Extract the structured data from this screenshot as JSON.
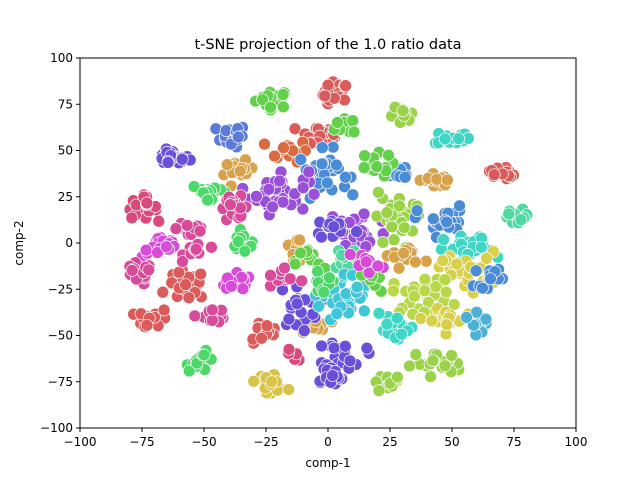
{
  "chart_data": {
    "type": "scatter",
    "title": "t-SNE projection of the 1.0 ratio data",
    "xlabel": "comp-1",
    "ylabel": "comp-2",
    "xlim": [
      -100,
      100
    ],
    "ylim": [
      -100,
      100
    ],
    "xticks": [
      "−100",
      "−75",
      "−50",
      "−25",
      "0",
      "25",
      "50",
      "75",
      "100"
    ],
    "yticks": [
      "−100",
      "−75",
      "−50",
      "−25",
      "0",
      "25",
      "50",
      "75",
      "100"
    ],
    "xtick_values": [
      -100,
      -75,
      -50,
      -25,
      0,
      25,
      50,
      75,
      100
    ],
    "ytick_values": [
      -100,
      -75,
      -50,
      -25,
      0,
      25,
      50,
      75,
      100
    ],
    "grid": false,
    "legend": false,
    "clusters": [
      {
        "color": "#62d04a",
        "center": [
          -22,
          78
        ],
        "spread": [
          3.5,
          2.5
        ],
        "n": 22
      },
      {
        "color": "#db5b5b",
        "center": [
          3,
          80
        ],
        "spread": [
          2.5,
          3.5
        ],
        "n": 22
      },
      {
        "color": "#5b7bdb",
        "center": [
          -39,
          58
        ],
        "spread": [
          3,
          3
        ],
        "n": 20
      },
      {
        "color": "#6a4fd8",
        "center": [
          -63,
          46
        ],
        "spread": [
          3.5,
          2
        ],
        "n": 22
      },
      {
        "color": "#9ad24a",
        "center": [
          30,
          68
        ],
        "spread": [
          2.5,
          2.5
        ],
        "n": 16
      },
      {
        "color": "#3fd6c5",
        "center": [
          50,
          57
        ],
        "spread": [
          3.5,
          2
        ],
        "n": 16
      },
      {
        "color": "#db5b5b",
        "center": [
          -3,
          58
        ],
        "spread": [
          4.5,
          3.5
        ],
        "n": 30
      },
      {
        "color": "#62d04a",
        "center": [
          9,
          64
        ],
        "spread": [
          3,
          3
        ],
        "n": 14
      },
      {
        "color": "#db6b3f",
        "center": [
          -16,
          50
        ],
        "spread": [
          4,
          3
        ],
        "n": 20
      },
      {
        "color": "#4a8cd8",
        "center": [
          -2,
          38
        ],
        "spread": [
          5,
          6
        ],
        "n": 34
      },
      {
        "color": "#9a4fd8",
        "center": [
          -20,
          28
        ],
        "spread": [
          6,
          6
        ],
        "n": 38
      },
      {
        "color": "#d8a24a",
        "center": [
          -36,
          38
        ],
        "spread": [
          3,
          3
        ],
        "n": 14
      },
      {
        "color": "#4fd86a",
        "center": [
          -47,
          28
        ],
        "spread": [
          4,
          2
        ],
        "n": 18
      },
      {
        "color": "#d84a9a",
        "center": [
          -38,
          19
        ],
        "spread": [
          3,
          3
        ],
        "n": 16
      },
      {
        "color": "#d84a7a",
        "center": [
          -75,
          19
        ],
        "spread": [
          3,
          3
        ],
        "n": 22
      },
      {
        "color": "#d84ad8",
        "center": [
          -67,
          -2
        ],
        "spread": [
          4,
          3
        ],
        "n": 22
      },
      {
        "color": "#d84a9a",
        "center": [
          -55,
          8
        ],
        "spread": [
          3,
          3
        ],
        "n": 16
      },
      {
        "color": "#4fd86a",
        "center": [
          -34,
          0
        ],
        "spread": [
          3,
          3
        ],
        "n": 14
      },
      {
        "color": "#d84a9a",
        "center": [
          -77,
          -17
        ],
        "spread": [
          3,
          3
        ],
        "n": 20
      },
      {
        "color": "#db5b5b",
        "center": [
          -57,
          -23
        ],
        "spread": [
          4,
          4
        ],
        "n": 28
      },
      {
        "color": "#d84ad8",
        "center": [
          -38,
          -22
        ],
        "spread": [
          4,
          2.5
        ],
        "n": 18
      },
      {
        "color": "#d84a9a",
        "center": [
          -53,
          -4
        ],
        "spread": [
          2.5,
          2.5
        ],
        "n": 10
      },
      {
        "color": "#db5b5b",
        "center": [
          -70,
          -41
        ],
        "spread": [
          3.5,
          2.5
        ],
        "n": 20
      },
      {
        "color": "#d84a9a",
        "center": [
          -47,
          -39
        ],
        "spread": [
          3,
          2
        ],
        "n": 14
      },
      {
        "color": "#4fd86a",
        "center": [
          -51,
          -64
        ],
        "spread": [
          3,
          2.5
        ],
        "n": 16
      },
      {
        "color": "#db5b5b",
        "center": [
          -26,
          -48
        ],
        "spread": [
          3,
          3
        ],
        "n": 14
      },
      {
        "color": "#d8c24a",
        "center": [
          -23,
          -75
        ],
        "spread": [
          3,
          2.5
        ],
        "n": 16
      },
      {
        "color": "#d84a7a",
        "center": [
          -14,
          -62
        ],
        "spread": [
          2,
          2
        ],
        "n": 5
      },
      {
        "color": "#d8a24a",
        "center": [
          -7,
          -45
        ],
        "spread": [
          3.5,
          3
        ],
        "n": 16
      },
      {
        "color": "#6a4fd8",
        "center": [
          -12,
          -34
        ],
        "spread": [
          4,
          6
        ],
        "n": 20
      },
      {
        "color": "#d8a24a",
        "center": [
          -13,
          -5
        ],
        "spread": [
          3,
          4
        ],
        "n": 14
      },
      {
        "color": "#62d04a",
        "center": [
          -7,
          -10
        ],
        "spread": [
          3,
          4
        ],
        "n": 12
      },
      {
        "color": "#9a4fd8",
        "center": [
          12,
          5
        ],
        "spread": [
          6,
          8
        ],
        "n": 34
      },
      {
        "color": "#6a4fd8",
        "center": [
          3,
          8
        ],
        "spread": [
          4,
          3
        ],
        "n": 16
      },
      {
        "color": "#4fd8a0",
        "center": [
          7,
          -8
        ],
        "spread": [
          3,
          4
        ],
        "n": 14
      },
      {
        "color": "#3fc6d8",
        "center": [
          7,
          -30
        ],
        "spread": [
          5,
          7
        ],
        "n": 36
      },
      {
        "color": "#6a4fd8",
        "center": [
          7,
          -60
        ],
        "spread": [
          4,
          4
        ],
        "n": 24
      },
      {
        "color": "#6a4fd8",
        "center": [
          0,
          -72
        ],
        "spread": [
          3,
          3
        ],
        "n": 16
      },
      {
        "color": "#4a8cd8",
        "center": [
          28,
          38
        ],
        "spread": [
          3,
          2.5
        ],
        "n": 14
      },
      {
        "color": "#62d04a",
        "center": [
          18,
          42
        ],
        "spread": [
          4,
          3
        ],
        "n": 14
      },
      {
        "color": "#9ad24a",
        "center": [
          27,
          12
        ],
        "spread": [
          4,
          8
        ],
        "n": 30
      },
      {
        "color": "#d8a24a",
        "center": [
          43,
          34
        ],
        "spread": [
          3,
          2
        ],
        "n": 16
      },
      {
        "color": "#db5b5b",
        "center": [
          70,
          38
        ],
        "spread": [
          2.5,
          2
        ],
        "n": 14
      },
      {
        "color": "#4a8cd8",
        "center": [
          46,
          12
        ],
        "spread": [
          5,
          4
        ],
        "n": 24
      },
      {
        "color": "#4fd8a0",
        "center": [
          76,
          14
        ],
        "spread": [
          3,
          2
        ],
        "n": 18
      },
      {
        "color": "#3fd6c5",
        "center": [
          57,
          -4
        ],
        "spread": [
          5,
          4
        ],
        "n": 24
      },
      {
        "color": "#d8d04a",
        "center": [
          55,
          -15
        ],
        "spread": [
          7,
          5
        ],
        "n": 34
      },
      {
        "color": "#d8a24a",
        "center": [
          31,
          -7
        ],
        "spread": [
          4,
          3
        ],
        "n": 14
      },
      {
        "color": "#b8d84a",
        "center": [
          38,
          -28
        ],
        "spread": [
          6,
          5
        ],
        "n": 30
      },
      {
        "color": "#d8d04a",
        "center": [
          47,
          -42
        ],
        "spread": [
          4,
          3
        ],
        "n": 20
      },
      {
        "color": "#4ab0d8",
        "center": [
          61,
          -40
        ],
        "spread": [
          3,
          4
        ],
        "n": 14
      },
      {
        "color": "#3fd6c5",
        "center": [
          27,
          -47
        ],
        "spread": [
          4,
          4
        ],
        "n": 16
      },
      {
        "color": "#9ad24a",
        "center": [
          44,
          -65
        ],
        "spread": [
          5,
          3
        ],
        "n": 20
      },
      {
        "color": "#9ad24a",
        "center": [
          26,
          -75
        ],
        "spread": [
          4,
          2
        ],
        "n": 16
      },
      {
        "color": "#62d04a",
        "center": [
          18,
          -20
        ],
        "spread": [
          3,
          4
        ],
        "n": 12
      },
      {
        "color": "#d84a9a",
        "center": [
          -16,
          -18
        ],
        "spread": [
          3,
          3
        ],
        "n": 10
      },
      {
        "color": "#d84ad8",
        "center": [
          15,
          -10
        ],
        "spread": [
          3,
          3
        ],
        "n": 10
      },
      {
        "color": "#4a8cd8",
        "center": [
          65,
          -18
        ],
        "spread": [
          3,
          3
        ],
        "n": 12
      },
      {
        "color": "#4fd86a",
        "center": [
          -3,
          -22
        ],
        "spread": [
          3,
          3
        ],
        "n": 10
      }
    ]
  }
}
